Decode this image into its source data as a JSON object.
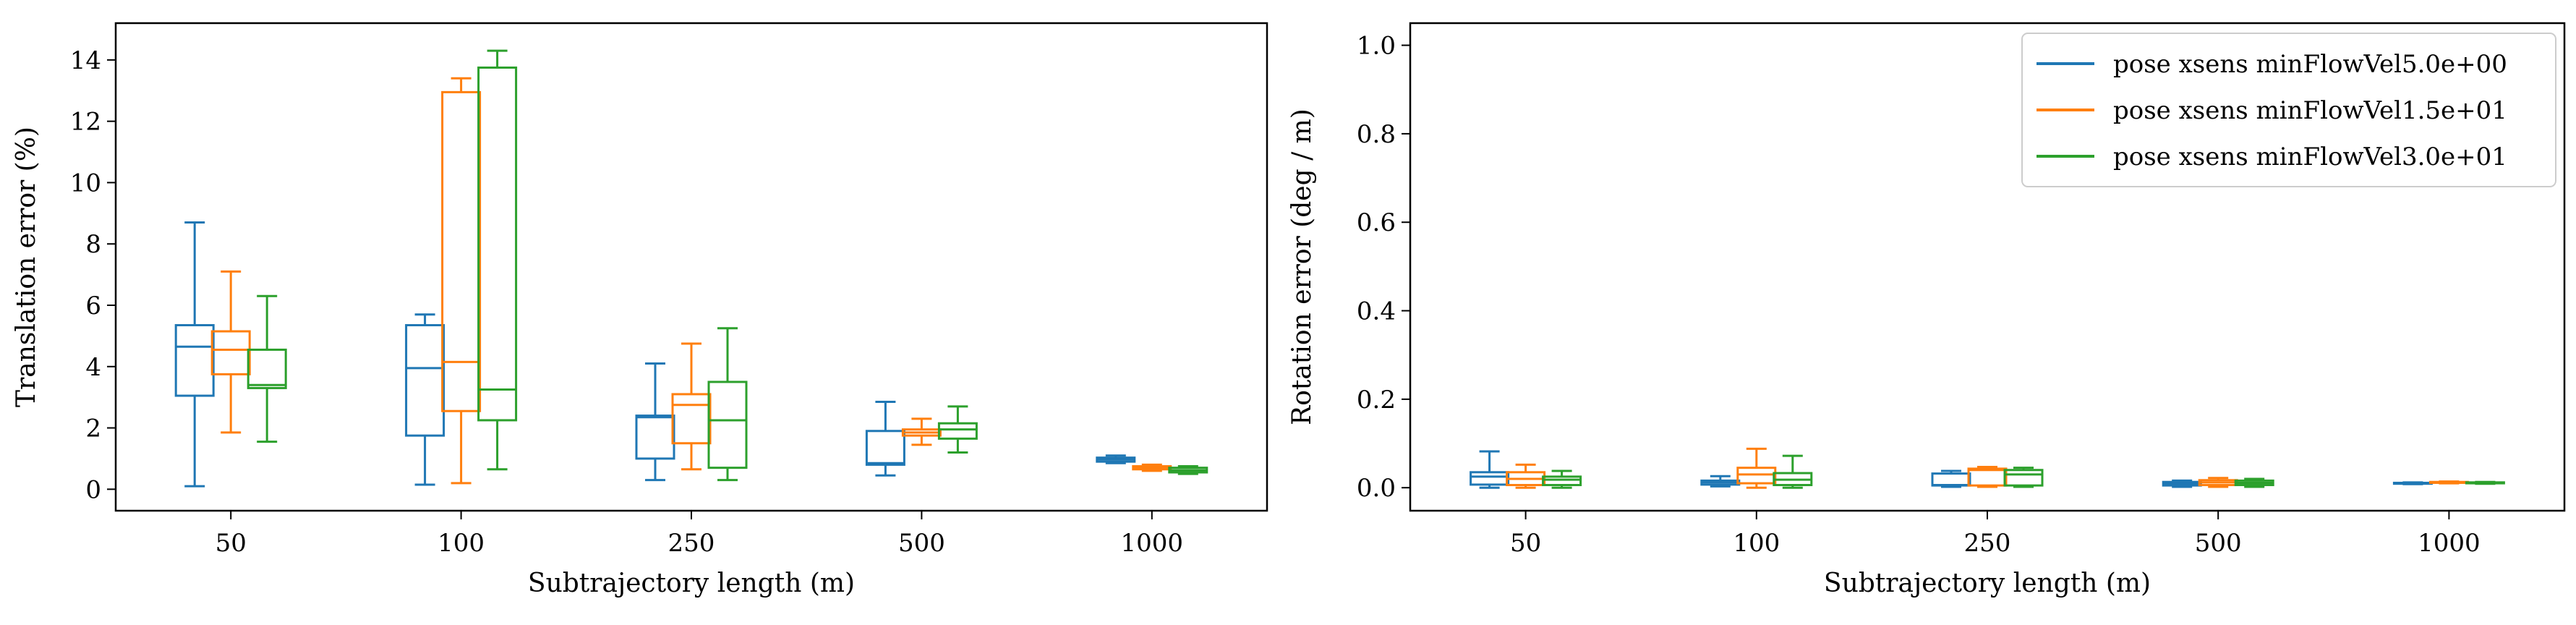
{
  "chart_data": [
    {
      "type": "box",
      "xlabel": "Subtrajectory length (m)",
      "ylabel": "Translation error (%)",
      "categories": [
        "50",
        "100",
        "250",
        "500",
        "1000"
      ],
      "ylim": [
        -0.7,
        15.2
      ],
      "yticks": [
        0,
        2,
        4,
        6,
        8,
        10,
        12,
        14
      ],
      "ytick_labels": [
        "0",
        "2",
        "4",
        "6",
        "8",
        "10",
        "12",
        "14"
      ],
      "grid": false,
      "series": [
        {
          "name": "pose xsens minFlowVel5.0e+00",
          "color": "#1f77b4",
          "boxes": [
            {
              "whislo": 0.1,
              "q1": 3.05,
              "med": 4.65,
              "q3": 5.35,
              "whishi": 8.7
            },
            {
              "whislo": 0.15,
              "q1": 1.75,
              "med": 3.95,
              "q3": 5.35,
              "whishi": 5.7
            },
            {
              "whislo": 0.3,
              "q1": 1.0,
              "med": 2.35,
              "q3": 2.4,
              "whishi": 4.1
            },
            {
              "whislo": 0.45,
              "q1": 0.8,
              "med": 0.85,
              "q3": 1.9,
              "whishi": 2.85
            },
            {
              "whislo": 0.85,
              "q1": 0.9,
              "med": 0.97,
              "q3": 1.03,
              "whishi": 1.1
            }
          ]
        },
        {
          "name": "pose xsens minFlowVel1.5e+01",
          "color": "#ff7f0e",
          "boxes": [
            {
              "whislo": 1.85,
              "q1": 3.75,
              "med": 4.55,
              "q3": 5.15,
              "whishi": 7.1
            },
            {
              "whislo": 0.2,
              "q1": 2.55,
              "med": 4.15,
              "q3": 12.95,
              "whishi": 13.4
            },
            {
              "whislo": 0.65,
              "q1": 1.5,
              "med": 2.75,
              "q3": 3.1,
              "whishi": 4.75
            },
            {
              "whislo": 1.45,
              "q1": 1.75,
              "med": 1.85,
              "q3": 1.95,
              "whishi": 2.3
            },
            {
              "whislo": 0.6,
              "q1": 0.65,
              "med": 0.7,
              "q3": 0.75,
              "whishi": 0.8
            }
          ]
        },
        {
          "name": "pose xsens minFlowVel3.0e+01",
          "color": "#2ca02c",
          "boxes": [
            {
              "whislo": 1.55,
              "q1": 3.3,
              "med": 3.4,
              "q3": 4.55,
              "whishi": 6.3
            },
            {
              "whislo": 0.65,
              "q1": 2.25,
              "med": 3.25,
              "q3": 13.75,
              "whishi": 14.3
            },
            {
              "whislo": 0.3,
              "q1": 0.7,
              "med": 2.25,
              "q3": 3.5,
              "whishi": 5.25
            },
            {
              "whislo": 1.2,
              "q1": 1.65,
              "med": 1.95,
              "q3": 2.15,
              "whishi": 2.7
            },
            {
              "whislo": 0.5,
              "q1": 0.55,
              "med": 0.62,
              "q3": 0.7,
              "whishi": 0.75
            }
          ]
        }
      ]
    },
    {
      "type": "box",
      "xlabel": "Subtrajectory length (m)",
      "ylabel": "Rotation error (deg / m)",
      "categories": [
        "50",
        "100",
        "250",
        "500",
        "1000"
      ],
      "ylim": [
        -0.052,
        1.05
      ],
      "yticks": [
        0.0,
        0.2,
        0.4,
        0.6,
        0.8,
        1.0
      ],
      "ytick_labels": [
        "0.0",
        "0.2",
        "0.4",
        "0.6",
        "0.8",
        "1.0"
      ],
      "grid": false,
      "legend": "top-right",
      "series": [
        {
          "name": "pose xsens minFlowVel5.0e+00",
          "color": "#1f77b4",
          "boxes": [
            {
              "whislo": 0.0,
              "q1": 0.007,
              "med": 0.025,
              "q3": 0.035,
              "whishi": 0.082
            },
            {
              "whislo": 0.003,
              "q1": 0.007,
              "med": 0.012,
              "q3": 0.016,
              "whishi": 0.026
            },
            {
              "whislo": 0.002,
              "q1": 0.005,
              "med": 0.006,
              "q3": 0.032,
              "whishi": 0.038
            },
            {
              "whislo": 0.002,
              "q1": 0.005,
              "med": 0.009,
              "q3": 0.013,
              "whishi": 0.016
            },
            {
              "whislo": 0.008,
              "q1": 0.009,
              "med": 0.01,
              "q3": 0.011,
              "whishi": 0.012
            }
          ]
        },
        {
          "name": "pose xsens minFlowVel1.5e+01",
          "color": "#ff7f0e",
          "boxes": [
            {
              "whislo": 0.0,
              "q1": 0.006,
              "med": 0.02,
              "q3": 0.035,
              "whishi": 0.052
            },
            {
              "whislo": 0.0,
              "q1": 0.01,
              "med": 0.03,
              "q3": 0.045,
              "whishi": 0.088
            },
            {
              "whislo": 0.002,
              "q1": 0.005,
              "med": 0.04,
              "q3": 0.043,
              "whishi": 0.047
            },
            {
              "whislo": 0.002,
              "q1": 0.006,
              "med": 0.012,
              "q3": 0.017,
              "whishi": 0.022
            },
            {
              "whislo": 0.01,
              "q1": 0.011,
              "med": 0.012,
              "q3": 0.013,
              "whishi": 0.014
            }
          ]
        },
        {
          "name": "pose xsens minFlowVel3.0e+01",
          "color": "#2ca02c",
          "boxes": [
            {
              "whislo": 0.0,
              "q1": 0.006,
              "med": 0.018,
              "q3": 0.025,
              "whishi": 0.038
            },
            {
              "whislo": 0.0,
              "q1": 0.006,
              "med": 0.018,
              "q3": 0.033,
              "whishi": 0.072
            },
            {
              "whislo": 0.002,
              "q1": 0.005,
              "med": 0.03,
              "q3": 0.04,
              "whishi": 0.045
            },
            {
              "whislo": 0.002,
              "q1": 0.006,
              "med": 0.011,
              "q3": 0.016,
              "whishi": 0.02
            },
            {
              "whislo": 0.009,
              "q1": 0.01,
              "med": 0.011,
              "q3": 0.012,
              "whishi": 0.013
            }
          ]
        }
      ]
    }
  ]
}
